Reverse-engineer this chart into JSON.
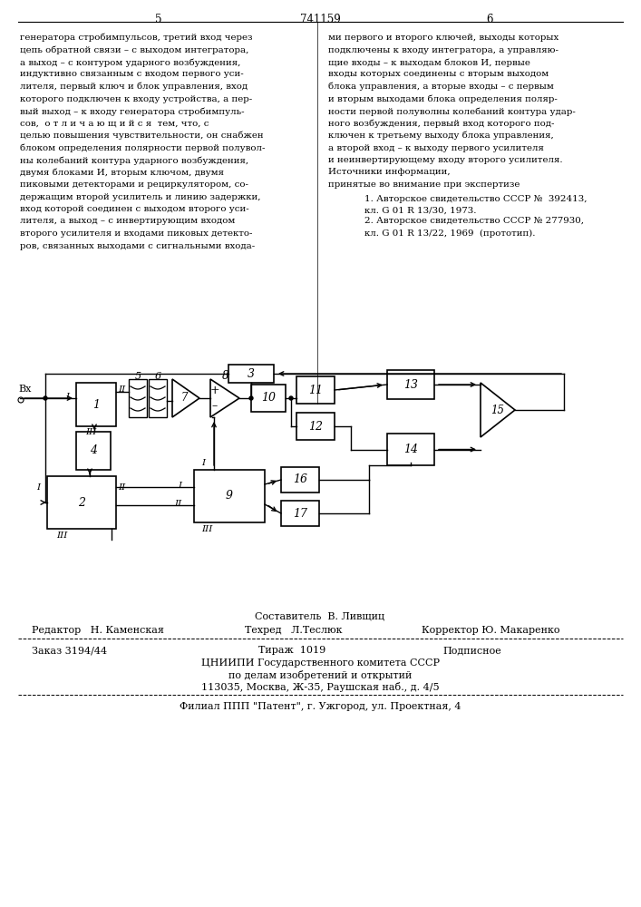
{
  "page_numbers": [
    "5",
    "741159",
    "6"
  ],
  "text_col1": [
    "генератора стробимпульсов, третий вход через",
    "цепь обратной связи – с выходом интегратора,",
    "а выход – с контуром ударного возбуждения,",
    "индуктивно связанным с входом первого уси-",
    "лителя, первый ключ и блок управления, вход",
    "которого подключен к входу устройства, а пер-",
    "вый выход – к входу генератора стробимпуль-",
    "сов,  о т л и ч а ю щ и й с я  тем, что, с",
    "целью повышения чувствительности, он снабжен",
    "блоком определения полярности первой полувол-",
    "ны колебаний контура ударного возбуждения,",
    "двумя блоками И, вторым ключом, двумя",
    "пиковыми детекторами и рециркулятором, со-",
    "держащим второй усилитель и линию задержки,",
    "вход которой соединен с выходом второго уси-",
    "лителя, а выход – с инвертирующим входом",
    "второго усилителя и входами пиковых детекто-",
    "ров, связанных выходами с сигнальными входа-"
  ],
  "text_col2_top": [
    "ми первого и второго ключей, выходы которых",
    "подключены к входу интегратора, а управляю-",
    "щие входы – к выходам блоков И, первые",
    "входы которых соединены с вторым выходом",
    "блока управления, а вторые входы – с первым",
    "и вторым выходами блока определения поляр-",
    "ности первой полуволны колебаний контура удар-",
    "ного возбуждения, первый вход которого под-",
    "ключен к третьему выходу блока управления,",
    "а второй вход – к выходу первого усилителя",
    "и неинвертирующему входу второго усилителя.",
    "Источники информации,",
    "принятые во внимание при экспертизе"
  ],
  "ref1": "1. Авторское свидетельство СССР №  392413,",
  "ref1b": "кл. G 01 R 13/30, 1973.",
  "ref2": "2. Авторское свидетельство СССР № 277930,",
  "ref2b": "кл. G 01 R 13/22, 1969  (прототип).",
  "editor_line": "Составитель  В. Ливщиц",
  "editor": "Редактор   Н. Каменская",
  "techred": "Техред   Л.Теслюк",
  "corrector": "Корректор Ю. Макаренко",
  "order": "Заказ 3194/44",
  "tirazh": "Тираж  1019",
  "podpisnoe": "Подписное",
  "cniip1": "ЦНИИПИ Государственного комитета СССР",
  "cniip2": "по делам изобретений и открытий",
  "cniip3": "113035, Москва, Ж-35, Раушская наб., д. 4/5",
  "filial": "Филиал ППП \"Патент\", г. Ужгород, ул. Проектная, 4",
  "bg_color": "#ffffff",
  "text_color": "#000000"
}
